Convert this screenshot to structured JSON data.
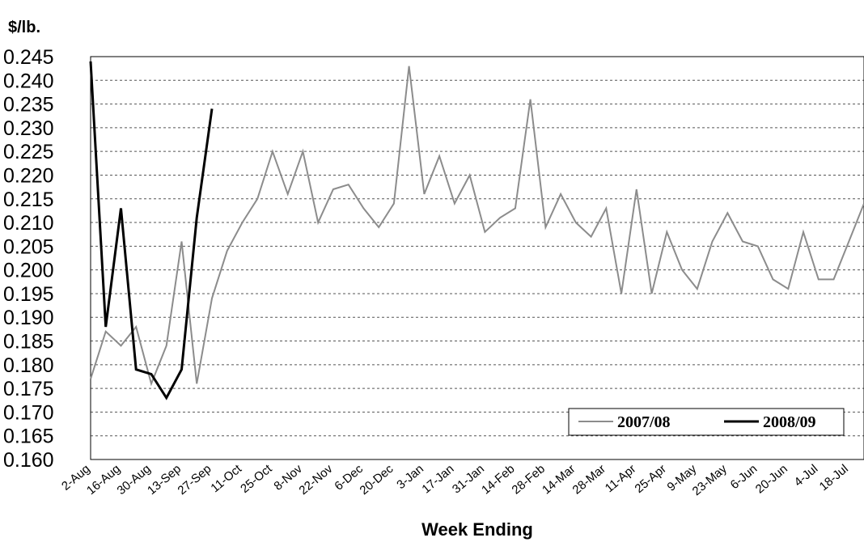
{
  "chart_data": {
    "type": "line",
    "ylabel": "$/lb.",
    "xlabel": "Week Ending",
    "ylim": [
      0.16,
      0.245
    ],
    "y_ticks": [
      "0.160",
      "0.165",
      "0.170",
      "0.175",
      "0.180",
      "0.185",
      "0.190",
      "0.195",
      "0.200",
      "0.205",
      "0.210",
      "0.215",
      "0.220",
      "0.225",
      "0.230",
      "0.235",
      "0.240",
      "0.245"
    ],
    "x_tick_labels": [
      "2-Aug",
      "16-Aug",
      "30-Aug",
      "13-Sep",
      "27-Sep",
      "11-Oct",
      "25-Oct",
      "8-Nov",
      "22-Nov",
      "6-Dec",
      "20-Dec",
      "3-Jan",
      "17-Jan",
      "31-Jan",
      "14-Feb",
      "28-Feb",
      "14-Mar",
      "28-Mar",
      "11-Apr",
      "25-Apr",
      "9-May",
      "23-May",
      "6-Jun",
      "20-Jun",
      "4-Jul",
      "18-Jul"
    ],
    "grid": true,
    "legend_position": "bottom-right",
    "series": [
      {
        "name": "2007/08",
        "color": "#8c8c8c",
        "values": [
          0.177,
          0.187,
          0.184,
          0.188,
          0.176,
          0.184,
          0.206,
          0.176,
          0.194,
          0.204,
          0.21,
          0.215,
          0.225,
          0.216,
          0.225,
          0.21,
          0.217,
          0.218,
          0.213,
          0.209,
          0.214,
          0.243,
          0.216,
          0.224,
          0.214,
          0.22,
          0.208,
          0.211,
          0.213,
          0.236,
          0.209,
          0.216,
          0.21,
          0.207,
          0.213,
          0.195,
          0.217,
          0.195,
          0.208,
          0.2,
          0.196,
          0.206,
          0.212,
          0.206,
          0.205,
          0.198,
          0.196,
          0.208,
          0.198,
          0.198,
          0.206,
          0.214
        ]
      },
      {
        "name": "2008/09",
        "color": "#000000",
        "values": [
          0.244,
          0.188,
          0.213,
          0.179,
          0.178,
          0.173,
          0.179,
          0.211,
          0.234
        ]
      }
    ]
  }
}
